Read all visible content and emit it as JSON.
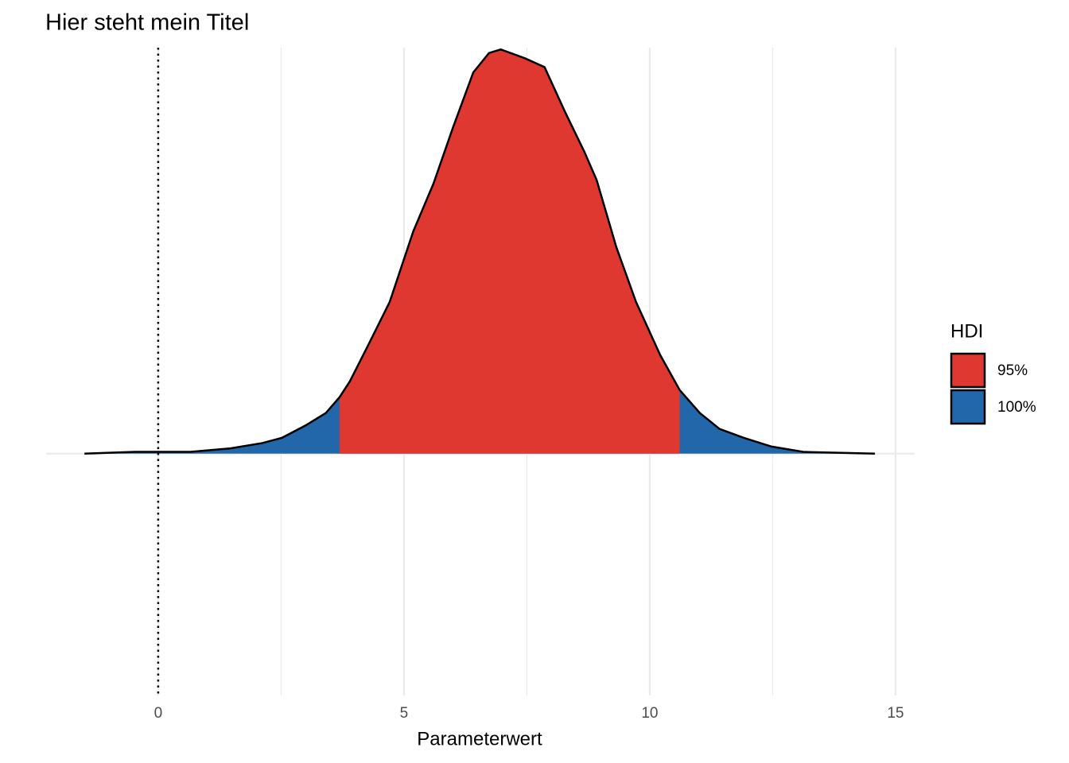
{
  "chart_data": {
    "type": "density",
    "title": "Hier steht mein Titel",
    "x_label": "Parameterwert",
    "x": [
      -1.5,
      -0.47,
      0.66,
      1.47,
      2.12,
      2.52,
      3.0,
      3.41,
      3.69,
      3.9,
      4.3,
      4.71,
      5.19,
      5.6,
      6.0,
      6.41,
      6.73,
      6.97,
      7.46,
      7.86,
      8.27,
      8.67,
      8.92,
      9.32,
      9.72,
      10.21,
      10.61,
      11.02,
      11.42,
      11.91,
      12.48,
      13.12,
      14.58
    ],
    "values": [
      0,
      0.001,
      0.001,
      0.003,
      0.006,
      0.009,
      0.016,
      0.023,
      0.032,
      0.041,
      0.063,
      0.086,
      0.126,
      0.153,
      0.185,
      0.216,
      0.227,
      0.229,
      0.224,
      0.219,
      0.194,
      0.171,
      0.155,
      0.117,
      0.086,
      0.056,
      0.036,
      0.023,
      0.014,
      0.009,
      0.004,
      0.001,
      0
    ],
    "intervals": [
      {
        "name": "95%",
        "color": "#de3831",
        "range": [
          3.69,
          10.61
        ]
      },
      {
        "name": "100%",
        "color": "#2267aa",
        "range": [
          -1.5,
          14.58
        ]
      }
    ],
    "legend_title": "HDI",
    "legend_position": "right",
    "vline": 0,
    "xlim": [
      -2.28,
      15.39
    ],
    "xticks": [
      0,
      5,
      10,
      15
    ],
    "minor_xticks": [
      2.5,
      7.5,
      12.5
    ],
    "ylim": [
      -0.137,
      0.23
    ],
    "ygrid_lines": [
      0
    ],
    "grid": true
  }
}
